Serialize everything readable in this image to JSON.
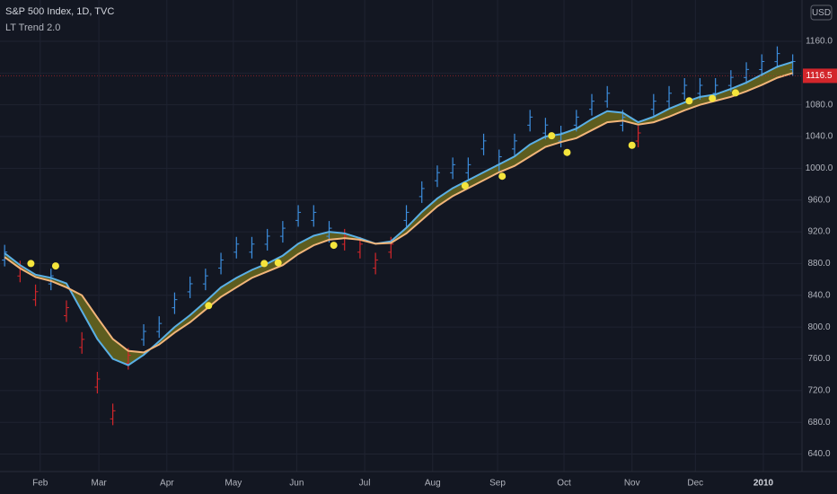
{
  "chart_data": {
    "type": "trend",
    "title": "S&P 500 Index, 1D, TVC",
    "subtitle": "LT Trend 2.0",
    "currency": "USD",
    "last_value": 1116.5,
    "xlim": [
      -0.3,
      51.6
    ],
    "xticks": [
      {
        "value": 2.3,
        "label": "Feb"
      },
      {
        "value": 6.1,
        "label": "Mar"
      },
      {
        "value": 10.5,
        "label": "Apr"
      },
      {
        "value": 14.8,
        "label": "May"
      },
      {
        "value": 18.9,
        "label": "Jun"
      },
      {
        "value": 23.3,
        "label": "Jul"
      },
      {
        "value": 27.7,
        "label": "Aug"
      },
      {
        "value": 31.9,
        "label": "Sep"
      },
      {
        "value": 36.2,
        "label": "Oct"
      },
      {
        "value": 40.6,
        "label": "Nov"
      },
      {
        "value": 44.7,
        "label": "Dec"
      },
      {
        "value": 49.1,
        "label": "2010"
      }
    ],
    "ylim": [
      618,
      1212
    ],
    "yticks": [
      {
        "value": 640,
        "label": "640.0"
      },
      {
        "value": 680,
        "label": "680.0"
      },
      {
        "value": 720,
        "label": "720.0"
      },
      {
        "value": 760,
        "label": "760.0"
      },
      {
        "value": 800,
        "label": "800.0"
      },
      {
        "value": 840,
        "label": "840.0"
      },
      {
        "value": 880,
        "label": "880.0"
      },
      {
        "value": 920,
        "label": "920.0"
      },
      {
        "value": 960,
        "label": "960.0"
      },
      {
        "value": 1000,
        "label": "1000.0"
      },
      {
        "value": 1040,
        "label": "1040.0"
      },
      {
        "value": 1080,
        "label": "1080.0"
      },
      {
        "value": 1120,
        "label": "1120.0"
      },
      {
        "value": 1160,
        "label": "1160.0"
      }
    ],
    "grid": true,
    "up_color": "#3d8fe0",
    "down_color": "#d3262b",
    "band_color": "#6b6a1f",
    "values": [
      890,
      870,
      840,
      860,
      820,
      780,
      730,
      690,
      760,
      790,
      800,
      830,
      850,
      860,
      880,
      900,
      900,
      910,
      920,
      940,
      940,
      920,
      910,
      900,
      880,
      900,
      940,
      970,
      990,
      1000,
      1000,
      1030,
      1010,
      1030,
      1060,
      1050,
      1040,
      1060,
      1080,
      1090,
      1060,
      1040,
      1080,
      1090,
      1100,
      1100,
      1100,
      1110,
      1120,
      1130,
      1140,
      1130
    ],
    "series": [
      {
        "color": "#5ab0e6",
        "values": [
          893,
          878,
          866,
          862,
          855,
          820,
          785,
          760,
          752,
          765,
          782,
          800,
          815,
          832,
          850,
          862,
          872,
          880,
          890,
          905,
          915,
          920,
          918,
          912,
          905,
          908,
          925,
          945,
          962,
          975,
          985,
          995,
          1005,
          1015,
          1030,
          1040,
          1043,
          1050,
          1062,
          1072,
          1070,
          1058,
          1065,
          1075,
          1083,
          1090,
          1093,
          1100,
          1108,
          1118,
          1128,
          1134
        ]
      },
      {
        "color": "#f2b57a",
        "values": [
          888,
          874,
          863,
          858,
          850,
          840,
          812,
          785,
          770,
          768,
          778,
          793,
          806,
          822,
          838,
          850,
          862,
          870,
          878,
          892,
          903,
          910,
          912,
          910,
          905,
          906,
          918,
          935,
          952,
          965,
          975,
          985,
          995,
          1003,
          1015,
          1027,
          1033,
          1038,
          1048,
          1058,
          1060,
          1055,
          1058,
          1065,
          1073,
          1080,
          1085,
          1090,
          1097,
          1105,
          1114,
          1120
        ]
      }
    ],
    "markers": {
      "color": "#f5e53c",
      "x": [
        1.7,
        3.3,
        13.2,
        16.8,
        17.7,
        21.3,
        29.8,
        32.2,
        35.4,
        36.4,
        40.6,
        44.3,
        45.8,
        47.3
      ],
      "values": [
        880,
        877,
        827,
        880,
        881,
        903,
        978,
        990,
        1041,
        1020,
        1029,
        1085,
        1088,
        1095
      ]
    }
  }
}
